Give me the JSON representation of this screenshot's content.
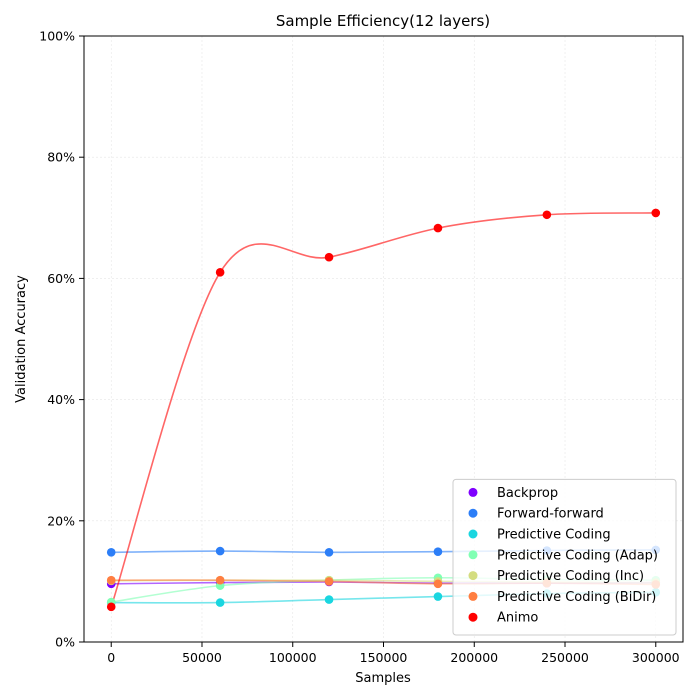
{
  "chart_data": {
    "type": "line",
    "title": "Sample Efficiency(12 layers)",
    "xlabel": "Samples",
    "ylabel": "Validation Accuracy",
    "xlim": [
      -15000,
      315000
    ],
    "ylim": [
      0,
      100
    ],
    "x": [
      0,
      60000,
      120000,
      180000,
      240000,
      300000
    ],
    "xticks": [
      0,
      50000,
      100000,
      150000,
      200000,
      250000,
      300000
    ],
    "xtick_labels": [
      "0",
      "50000",
      "100000",
      "150000",
      "200000",
      "250000",
      "300000"
    ],
    "yticks": [
      0,
      20,
      40,
      60,
      80,
      100
    ],
    "ytick_labels": [
      "0%",
      "20%",
      "40%",
      "60%",
      "80%",
      "100%"
    ],
    "grid": true,
    "legend_position": "lower-right",
    "series": [
      {
        "name": "Backprop",
        "color": "#7f00ff",
        "values": [
          9.6,
          9.8,
          9.9,
          9.7,
          9.7,
          9.8
        ]
      },
      {
        "name": "Forward-forward",
        "color": "#2c7ef7",
        "values": [
          14.8,
          15.0,
          14.8,
          14.9,
          15.1,
          15.2
        ]
      },
      {
        "name": "Predictive Coding",
        "color": "#1ad6e0",
        "values": [
          6.5,
          6.5,
          7.0,
          7.5,
          8.0,
          8.2
        ]
      },
      {
        "name": "Predictive Coding (Adap)",
        "color": "#80ffb4",
        "values": [
          6.6,
          9.3,
          10.2,
          10.6,
          10.3,
          10.2
        ]
      },
      {
        "name": "Predictive Coding (Inc)",
        "color": "#d4dd80",
        "values": [
          10.1,
          10.2,
          10.2,
          10.0,
          9.9,
          9.8
        ]
      },
      {
        "name": "Predictive Coding (BiDir)",
        "color": "#ff7e41",
        "values": [
          10.2,
          10.2,
          10.0,
          9.6,
          9.7,
          9.5
        ]
      },
      {
        "name": "Animo",
        "color": "#ff0000",
        "values": [
          5.8,
          61.0,
          63.5,
          68.3,
          70.5,
          70.8
        ]
      }
    ]
  }
}
